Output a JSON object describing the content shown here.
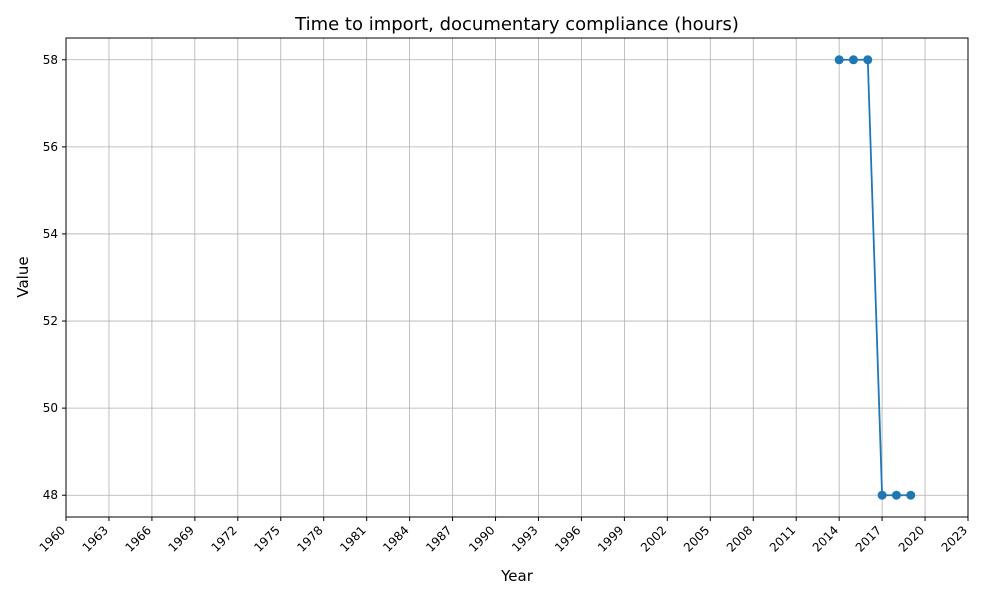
{
  "chart_data": {
    "type": "line",
    "title": "Time to import, documentary compliance (hours)",
    "xlabel": "Year",
    "ylabel": "Value",
    "xlim": [
      1960,
      2023
    ],
    "ylim": [
      47.5,
      58.5
    ],
    "xticks": [
      1960,
      1963,
      1966,
      1969,
      1972,
      1975,
      1978,
      1981,
      1984,
      1987,
      1990,
      1993,
      1996,
      1999,
      2002,
      2005,
      2008,
      2011,
      2014,
      2017,
      2020,
      2023
    ],
    "yticks": [
      48,
      50,
      52,
      54,
      56,
      58
    ],
    "grid": true,
    "color": "#1f77b4",
    "series": [
      {
        "x": [
          2014,
          2015,
          2016,
          2017,
          2018,
          2019
        ],
        "values": [
          58,
          58,
          58,
          48,
          48,
          48
        ]
      }
    ]
  }
}
